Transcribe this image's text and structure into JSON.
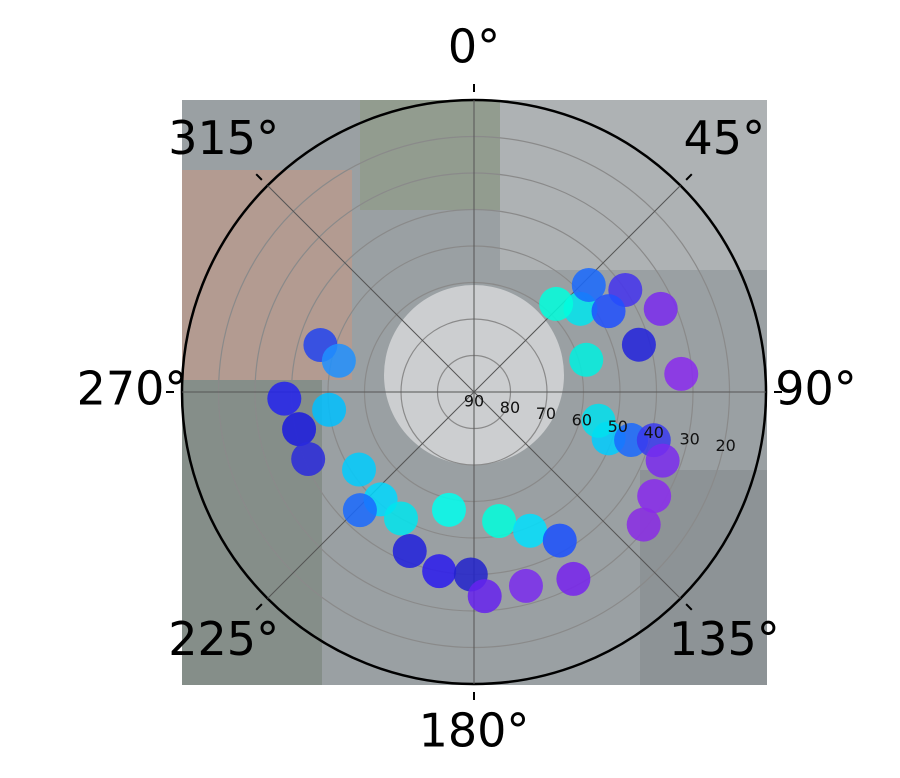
{
  "chart_data": {
    "type": "polar_scatter",
    "theta": [
      268,
      258,
      287,
      283,
      263,
      236,
      248,
      221,
      210,
      224,
      202,
      191,
      181,
      177,
      192,
      169,
      158,
      150,
      165,
      152,
      109,
      107,
      105,
      110,
      120,
      128,
      103,
      74,
      52,
      43,
      47,
      56,
      66,
      74,
      85,
      59
    ],
    "r": [
      38,
      41,
      46,
      52,
      50,
      52,
      41,
      51,
      50,
      45,
      43,
      40,
      40,
      34,
      57,
      54,
      49,
      43,
      35,
      32,
      51,
      45,
      39,
      35,
      33,
      31,
      55,
      58,
      53,
      57,
      47,
      40,
      34,
      43,
      33,
      47
    ],
    "colors": [
      "#2222ee",
      "#1a1ae0",
      "#2244ee",
      "#1e90ff",
      "#00bfff",
      "#00ccff",
      "#2a2add",
      "#00d8ff",
      "#00e5ee",
      "#1a6aff",
      "#2020dd",
      "#2a1aee",
      "#2222cc",
      "#6622ee",
      "#00ffee",
      "#00ffdd",
      "#00e0ff",
      "#1a50ff",
      "#7a2aee",
      "#7722ee",
      "#00ccff",
      "#1a6aff",
      "#3a3aee",
      "#7a2aee",
      "#8a2aee",
      "#8a2ae6",
      "#00e0ee",
      "#00f0e0",
      "#00e5ee",
      "#00ffdd",
      "#1a6aff",
      "#4433ee",
      "#7a2aee",
      "#2222dd",
      "#8a2aee",
      "#2050ff"
    ],
    "rlim": [
      90,
      10
    ],
    "rticks": [
      90,
      80,
      70,
      60,
      50,
      40,
      30,
      20
    ],
    "thetaticks": [
      {
        "value": 0,
        "label": "0°"
      },
      {
        "value": 45,
        "label": "45°"
      },
      {
        "value": 90,
        "label": "90°"
      },
      {
        "value": 135,
        "label": "135°"
      },
      {
        "value": 180,
        "label": "180°"
      },
      {
        "value": 225,
        "label": "225°"
      },
      {
        "value": 270,
        "label": "270°"
      },
      {
        "value": 315,
        "label": "315°"
      }
    ]
  }
}
